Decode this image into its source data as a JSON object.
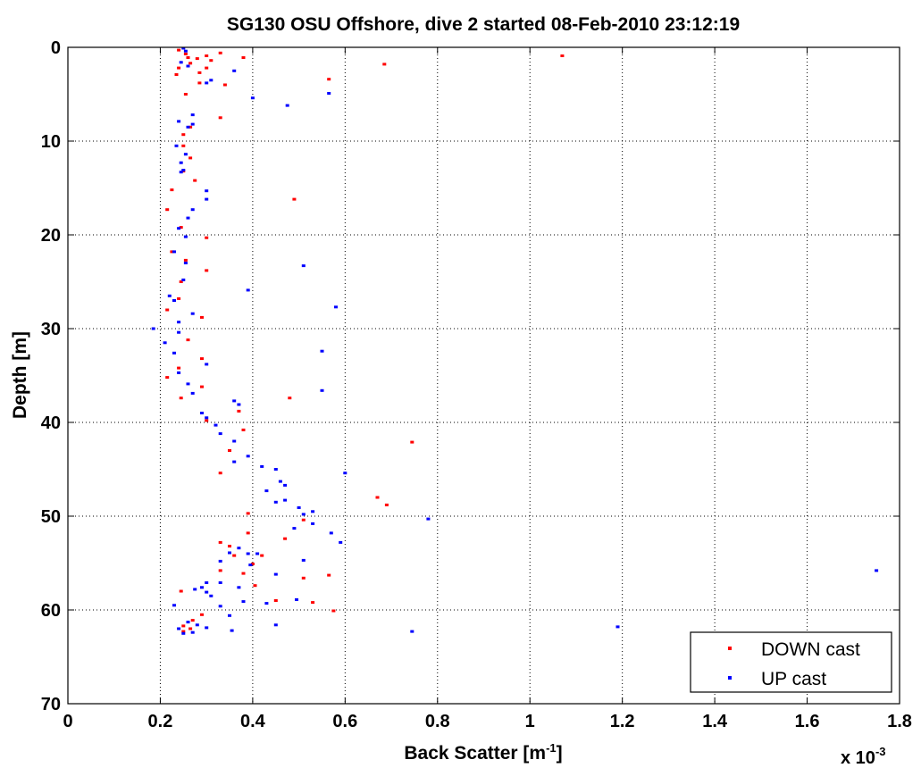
{
  "chart_data": {
    "type": "scatter",
    "title": "SG130 OSU Offshore, dive 2 started 08-Feb-2010 23:12:19",
    "xlabel": "Back Scatter [m",
    "xlabel_sup": "-1",
    "xlabel_end": "]",
    "ylabel": "Depth [m]",
    "x_multiplier_base": "x 10",
    "x_multiplier_exp": "-3",
    "xlim": [
      0,
      1.8
    ],
    "ylim": [
      0,
      70
    ],
    "y_reversed": true,
    "grid": true,
    "legend_placement": "bottom-right",
    "x_ticks": [
      0,
      0.2,
      0.4,
      0.6,
      0.8,
      1,
      1.2,
      1.4,
      1.6,
      1.8
    ],
    "y_ticks": [
      0,
      10,
      20,
      30,
      40,
      50,
      60,
      70
    ],
    "series": [
      {
        "name": "DOWN cast",
        "color": "#ff0000",
        "points": [
          [
            0.24,
            0.3
          ],
          [
            0.255,
            0.7
          ],
          [
            0.3,
            0.9
          ],
          [
            0.33,
            0.6
          ],
          [
            1.07,
            0.9
          ],
          [
            0.26,
            1.1
          ],
          [
            0.28,
            1.2
          ],
          [
            0.31,
            1.4
          ],
          [
            0.38,
            1.1
          ],
          [
            0.265,
            1.7
          ],
          [
            0.685,
            1.8
          ],
          [
            0.24,
            2.2
          ],
          [
            0.3,
            2.2
          ],
          [
            0.285,
            2.7
          ],
          [
            0.235,
            2.9
          ],
          [
            0.565,
            3.4
          ],
          [
            0.285,
            3.8
          ],
          [
            0.34,
            4.0
          ],
          [
            0.255,
            5.0
          ],
          [
            0.33,
            7.5
          ],
          [
            0.265,
            8.5
          ],
          [
            0.25,
            9.3
          ],
          [
            0.25,
            10.5
          ],
          [
            0.265,
            11.8
          ],
          [
            0.25,
            13.2
          ],
          [
            0.275,
            14.2
          ],
          [
            0.225,
            15.2
          ],
          [
            0.49,
            16.2
          ],
          [
            0.215,
            17.3
          ],
          [
            0.245,
            19.2
          ],
          [
            0.3,
            20.3
          ],
          [
            0.225,
            21.8
          ],
          [
            0.255,
            22.7
          ],
          [
            0.3,
            23.8
          ],
          [
            0.245,
            25
          ],
          [
            0.24,
            26.8
          ],
          [
            0.215,
            28
          ],
          [
            0.29,
            28.8
          ],
          [
            0.26,
            31.2
          ],
          [
            0.24,
            34.2
          ],
          [
            0.29,
            33.2
          ],
          [
            0.215,
            35.2
          ],
          [
            0.245,
            37.4
          ],
          [
            0.29,
            36.2
          ],
          [
            0.48,
            37.4
          ],
          [
            0.37,
            38.8
          ],
          [
            0.3,
            39.8
          ],
          [
            0.38,
            40.8
          ],
          [
            0.745,
            42.1
          ],
          [
            0.35,
            43
          ],
          [
            0.33,
            45.4
          ],
          [
            0.67,
            48
          ],
          [
            0.69,
            48.8
          ],
          [
            0.39,
            49.7
          ],
          [
            0.51,
            50.4
          ],
          [
            0.39,
            51.8
          ],
          [
            0.47,
            52.4
          ],
          [
            0.35,
            53.2
          ],
          [
            0.33,
            52.8
          ],
          [
            0.36,
            54.2
          ],
          [
            0.42,
            54.2
          ],
          [
            0.4,
            55.1
          ],
          [
            0.33,
            55.8
          ],
          [
            0.38,
            56.1
          ],
          [
            0.51,
            56.6
          ],
          [
            0.565,
            56.3
          ],
          [
            0.405,
            57.4
          ],
          [
            0.45,
            59
          ],
          [
            0.53,
            59.2
          ],
          [
            0.575,
            60.1
          ],
          [
            0.245,
            58
          ],
          [
            0.29,
            60.5
          ],
          [
            0.27,
            61.1
          ],
          [
            0.25,
            61.7
          ],
          [
            0.265,
            62
          ],
          [
            0.25,
            62.3
          ]
        ]
      },
      {
        "name": "UP cast",
        "color": "#0000ff",
        "points": [
          [
            0.25,
            0.1
          ],
          [
            0.255,
            0.4
          ],
          [
            0.245,
            1.6
          ],
          [
            0.26,
            2.0
          ],
          [
            0.36,
            2.5
          ],
          [
            0.31,
            3.5
          ],
          [
            0.3,
            3.8
          ],
          [
            0.4,
            5.4
          ],
          [
            0.565,
            4.9
          ],
          [
            0.475,
            6.2
          ],
          [
            0.27,
            7.2
          ],
          [
            0.24,
            7.9
          ],
          [
            0.26,
            8.5
          ],
          [
            0.27,
            8.2
          ],
          [
            0.235,
            10.5
          ],
          [
            0.255,
            11.4
          ],
          [
            0.245,
            12.3
          ],
          [
            0.245,
            13.3
          ],
          [
            0.25,
            13.1
          ],
          [
            0.3,
            15.3
          ],
          [
            0.3,
            16.2
          ],
          [
            0.27,
            17.3
          ],
          [
            0.26,
            18.2
          ],
          [
            0.24,
            19.3
          ],
          [
            0.255,
            20.2
          ],
          [
            0.23,
            21.8
          ],
          [
            0.255,
            23.0
          ],
          [
            0.51,
            23.3
          ],
          [
            0.25,
            24.8
          ],
          [
            0.39,
            25.9
          ],
          [
            0.22,
            26.5
          ],
          [
            0.23,
            27.0
          ],
          [
            0.58,
            27.7
          ],
          [
            0.27,
            28.4
          ],
          [
            0.24,
            29.3
          ],
          [
            0.185,
            30.0
          ],
          [
            0.24,
            30.4
          ],
          [
            0.21,
            31.5
          ],
          [
            0.23,
            32.6
          ],
          [
            0.55,
            32.4
          ],
          [
            0.3,
            33.8
          ],
          [
            0.24,
            34.7
          ],
          [
            0.26,
            35.9
          ],
          [
            0.55,
            36.6
          ],
          [
            0.27,
            36.9
          ],
          [
            0.36,
            37.7
          ],
          [
            0.37,
            38.1
          ],
          [
            0.29,
            39.0
          ],
          [
            0.3,
            39.5
          ],
          [
            0.32,
            40.3
          ],
          [
            0.33,
            41.2
          ],
          [
            0.36,
            42.0
          ],
          [
            0.39,
            43.6
          ],
          [
            0.36,
            44.2
          ],
          [
            0.42,
            44.7
          ],
          [
            0.45,
            45.0
          ],
          [
            0.6,
            45.4
          ],
          [
            0.46,
            46.3
          ],
          [
            0.47,
            46.7
          ],
          [
            0.43,
            47.3
          ],
          [
            0.47,
            48.3
          ],
          [
            0.45,
            48.5
          ],
          [
            0.5,
            49.1
          ],
          [
            0.53,
            49.5
          ],
          [
            0.51,
            49.8
          ],
          [
            0.78,
            50.3
          ],
          [
            0.53,
            50.8
          ],
          [
            0.49,
            51.3
          ],
          [
            0.57,
            51.8
          ],
          [
            0.59,
            52.8
          ],
          [
            0.41,
            54.0
          ],
          [
            0.37,
            53.4
          ],
          [
            0.35,
            53.9
          ],
          [
            0.33,
            54.8
          ],
          [
            0.39,
            54.0
          ],
          [
            0.395,
            55.2
          ],
          [
            0.51,
            54.7
          ],
          [
            0.45,
            56.2
          ],
          [
            1.75,
            55.8
          ],
          [
            0.3,
            57.1
          ],
          [
            0.33,
            57.1
          ],
          [
            0.29,
            57.6
          ],
          [
            0.37,
            57.6
          ],
          [
            0.275,
            57.8
          ],
          [
            0.3,
            58.1
          ],
          [
            0.31,
            58.5
          ],
          [
            0.43,
            59.3
          ],
          [
            0.38,
            59.1
          ],
          [
            0.495,
            58.9
          ],
          [
            0.33,
            59.6
          ],
          [
            0.23,
            59.5
          ],
          [
            0.35,
            60.6
          ],
          [
            1.19,
            61.8
          ],
          [
            0.45,
            61.6
          ],
          [
            0.26,
            61.3
          ],
          [
            0.28,
            61.6
          ],
          [
            0.3,
            61.9
          ],
          [
            0.24,
            62.0
          ],
          [
            0.25,
            62.5
          ],
          [
            0.27,
            62.4
          ],
          [
            0.355,
            62.2
          ],
          [
            0.745,
            62.3
          ]
        ]
      }
    ]
  }
}
